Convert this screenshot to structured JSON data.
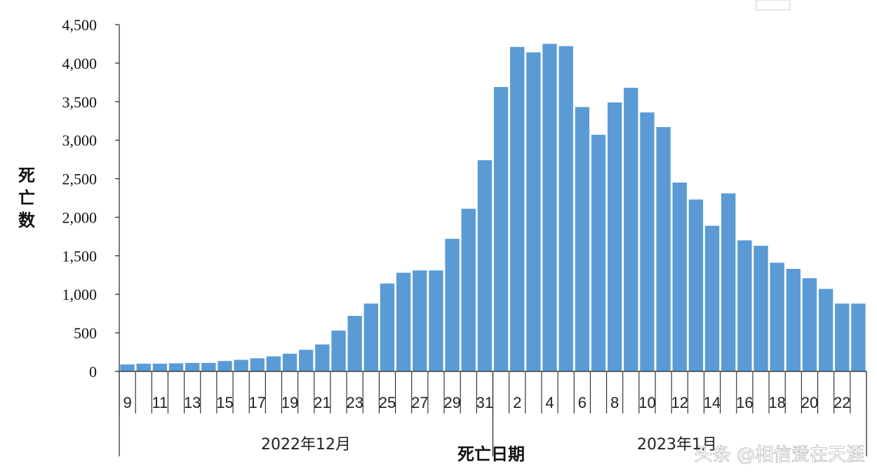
{
  "chart_data": {
    "type": "bar",
    "title": "",
    "ylabel": "死亡数",
    "xlabel": "死亡日期",
    "ylim": [
      0,
      4500
    ],
    "yticks": [
      0,
      500,
      1000,
      1500,
      2000,
      2500,
      3000,
      3500,
      4000,
      4500
    ],
    "ytick_labels": [
      "0",
      "500",
      "1,000",
      "1,500",
      "2,000",
      "2,500",
      "3,000",
      "3,500",
      "4,000",
      "4,500"
    ],
    "bar_color": "#5b9bd5",
    "categories": [
      "9",
      "10",
      "11",
      "12",
      "13",
      "14",
      "15",
      "16",
      "17",
      "18",
      "19",
      "20",
      "21",
      "22",
      "23",
      "24",
      "25",
      "26",
      "27",
      "28",
      "29",
      "30",
      "31",
      "1",
      "2",
      "3",
      "4",
      "5",
      "6",
      "7",
      "8",
      "9",
      "10",
      "11",
      "12",
      "13",
      "14",
      "15",
      "16",
      "17",
      "18",
      "19",
      "20",
      "21",
      "22",
      "23"
    ],
    "values": [
      90,
      100,
      100,
      105,
      110,
      110,
      135,
      150,
      170,
      195,
      230,
      280,
      350,
      530,
      720,
      880,
      1140,
      1280,
      1310,
      1310,
      1720,
      2110,
      2740,
      3690,
      4210,
      4140,
      4250,
      4220,
      3430,
      3070,
      3490,
      3680,
      3360,
      3170,
      2450,
      2230,
      1890,
      2310,
      1700,
      1630,
      1410,
      1330,
      1210,
      1070,
      880,
      880
    ],
    "x_tick_labels": [
      "9",
      "11",
      "13",
      "15",
      "17",
      "19",
      "21",
      "23",
      "25",
      "27",
      "29",
      "31",
      "2",
      "4",
      "6",
      "8",
      "10",
      "12",
      "14",
      "16",
      "18",
      "20",
      "22"
    ],
    "groups": [
      {
        "label": "2022年12月"
      },
      {
        "label": "2023年1月"
      }
    ]
  },
  "watermark": "头条 @相信爱在天涯"
}
